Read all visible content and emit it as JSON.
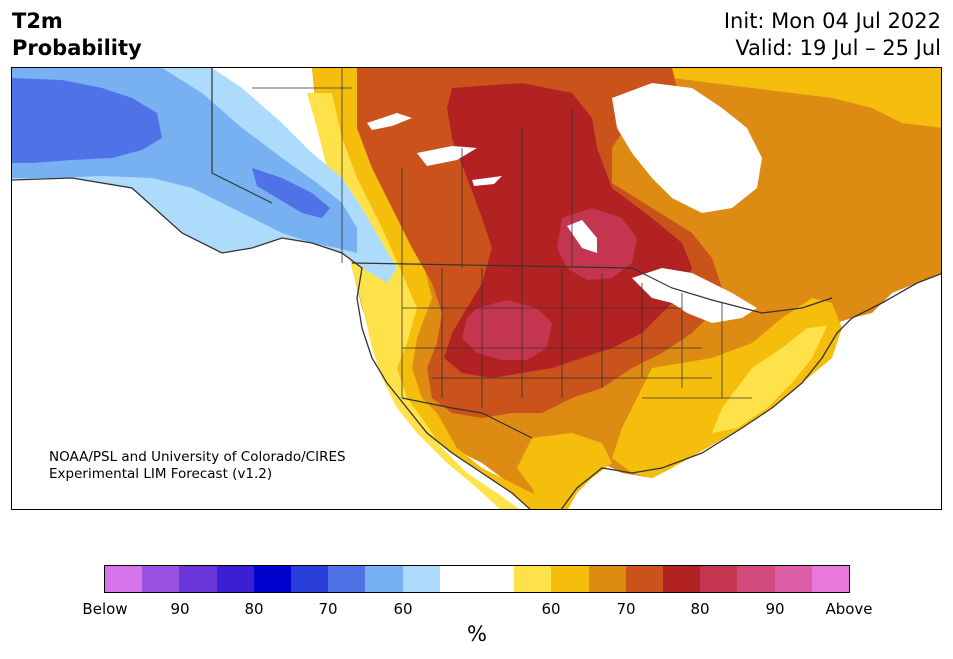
{
  "header": {
    "title_line1": "T2m",
    "title_line2": "Probability",
    "init": "Init: Mon 04 Jul 2022",
    "valid": "Valid: 19 Jul – 25 Jul"
  },
  "credit": {
    "line1": "NOAA/PSL and University of Colorado/CIRES",
    "line2": "Experimental LIM Forecast (v1.2)"
  },
  "colorbar": {
    "colors": [
      "#d473ea",
      "#9a50e0",
      "#6a35d8",
      "#3a1fd5",
      "#0000cc",
      "#2a3ed9",
      "#4f73e6",
      "#78b1f2",
      "#acdbfc",
      "#ffffff",
      "#ffffff",
      "#ffe24a",
      "#f5bd0c",
      "#de8b14",
      "#c9531a",
      "#b22222",
      "#c43650",
      "#d04b7b",
      "#dd5fa8",
      "#e878db"
    ],
    "tick_labels": [
      "Below",
      "90",
      "80",
      "70",
      "60",
      "60",
      "70",
      "80",
      "90",
      "Above"
    ],
    "unit_label": "%"
  },
  "map": {
    "ocean_color": "#ffffff",
    "border_color": "#333333",
    "regions": [
      {
        "name": "alaska-west-cold",
        "color": "#4f73e6"
      },
      {
        "name": "alaska-east-cold",
        "color": "#78b1f2"
      },
      {
        "name": "yukon-cold",
        "color": "#acdbfc"
      },
      {
        "name": "central-canada-warm",
        "color": "#b22222"
      },
      {
        "name": "great-plains-hot",
        "color": "#c43650"
      },
      {
        "name": "eastern-canada-warm",
        "color": "#de8b14"
      }
    ]
  }
}
